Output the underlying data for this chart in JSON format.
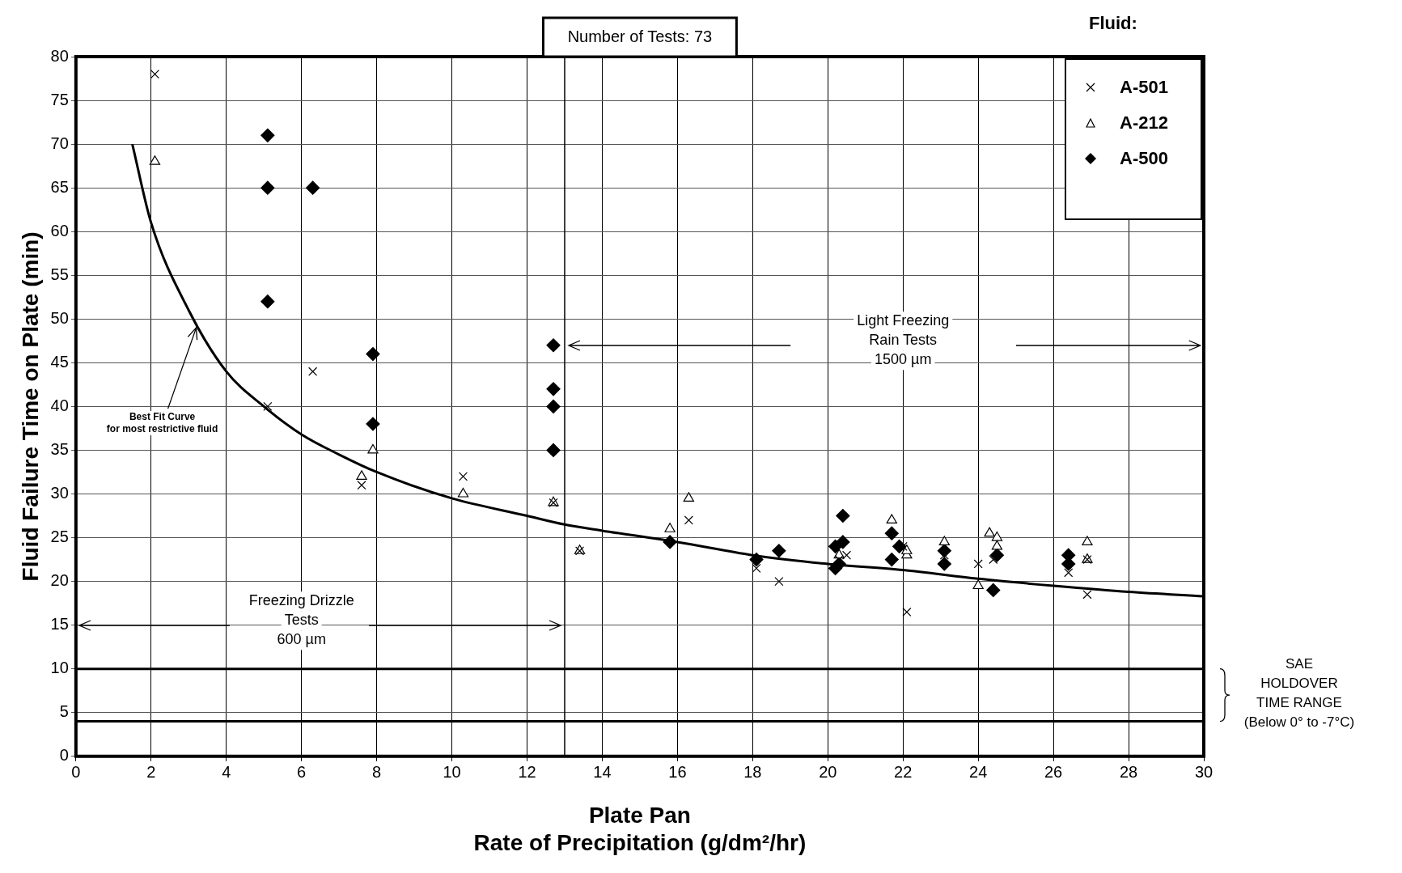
{
  "chart_data": {
    "type": "scatter",
    "legend_title": "Fluid:",
    "xlabel": "Plate Pan\nRate of Precipitation (g/dm²/hr)",
    "ylabel": "Fluid Failure Time on Plate (min)",
    "xlim": [
      0,
      30
    ],
    "xticks": [
      0,
      2,
      4,
      6,
      8,
      10,
      12,
      14,
      16,
      18,
      20,
      22,
      24,
      26,
      28,
      30
    ],
    "ylim": [
      0,
      80
    ],
    "yticks": [
      0,
      5,
      10,
      15,
      20,
      25,
      30,
      35,
      40,
      45,
      50,
      55,
      60,
      65,
      70,
      75,
      80
    ],
    "grid": true,
    "legend": "top right",
    "series": [
      {
        "name": "A-501",
        "color": "#000000",
        "marker": "cross",
        "x": [
          2.1,
          5.1,
          6.3,
          7.6,
          10.3,
          12.7,
          13.4,
          16.3,
          18.1,
          18.7,
          20.3,
          20.5,
          22.0,
          22.1,
          23.1,
          24.0,
          24.4,
          26.4,
          26.9,
          26.9
        ],
        "values": [
          78,
          40,
          44,
          31,
          32,
          29,
          23.5,
          27,
          21.5,
          20,
          22.5,
          23,
          24,
          16.5,
          23,
          22,
          22.5,
          21,
          22.5,
          18.5
        ]
      },
      {
        "name": "A-212",
        "color": "#000000",
        "marker": "triangle",
        "x": [
          2.1,
          7.6,
          7.9,
          10.3,
          12.7,
          13.4,
          15.8,
          16.3,
          20.3,
          21.7,
          22.1,
          22.1,
          23.1,
          24.0,
          24.3,
          24.5,
          24.5,
          26.9,
          26.9
        ],
        "values": [
          68,
          32,
          35,
          30,
          29,
          23.5,
          26,
          29.5,
          23,
          27,
          23,
          23.5,
          24.5,
          19.5,
          25.5,
          25,
          24,
          24.5,
          22.5
        ]
      },
      {
        "name": "A-500",
        "color": "#000000",
        "marker": "diamond",
        "x": [
          5.1,
          5.1,
          6.3,
          5.1,
          7.9,
          7.9,
          12.7,
          12.7,
          12.7,
          12.7,
          15.8,
          18.1,
          18.7,
          20.2,
          20.4,
          20.4,
          20.2,
          20.3,
          21.7,
          21.9,
          21.7,
          23.1,
          23.1,
          24.4,
          24.5,
          26.4,
          26.4
        ],
        "values": [
          71,
          65,
          65,
          52,
          46,
          38,
          47,
          42,
          40,
          35,
          24.5,
          22.5,
          23.5,
          24,
          24.5,
          27.5,
          21.5,
          22,
          25.5,
          24,
          22.5,
          23.5,
          22,
          19,
          23,
          23,
          22
        ]
      },
      {
        "type": "line",
        "color": "#000000",
        "marker": "none",
        "line_style": "solid",
        "x": [
          1.5,
          2,
          3,
          4,
          5,
          6,
          7,
          8,
          10,
          12,
          13,
          14,
          16,
          18,
          20,
          22,
          24,
          26,
          28,
          30
        ],
        "values": [
          70,
          61,
          51,
          44,
          40,
          36.8,
          34.5,
          32.5,
          29.5,
          27.5,
          26.5,
          25.8,
          24.5,
          23,
          22,
          21.3,
          20.3,
          19.5,
          18.8,
          18.3
        ]
      }
    ],
    "ref_lines": [
      {
        "axis": "x",
        "value": 13
      },
      {
        "axis": "y",
        "value": 10
      },
      {
        "axis": "y",
        "value": 4
      }
    ],
    "annotations": [
      "Number of Tests: 73",
      {
        "text": "Best Fit Curve\nfor most restrictive fluid",
        "x": 3.2,
        "y": 49
      },
      "Freezing Drizzle\nTests\n600 µm",
      "Light Freezing\nRain Tests\n1500 µm",
      "SAE\nHOLDOVER\nTIME RANGE\n(Below 0° to -7°C)"
    ]
  }
}
